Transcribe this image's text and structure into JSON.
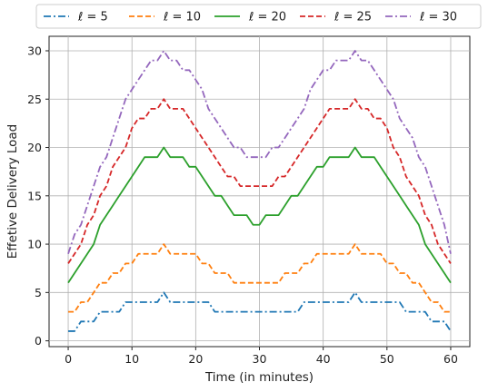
{
  "chart_data": {
    "type": "line",
    "xlabel": "Time (in minutes)",
    "ylabel": "Effetive Delivery Load",
    "xlim": [
      -3,
      63
    ],
    "ylim": [
      -0.6,
      31.5
    ],
    "xticks": [
      0,
      10,
      20,
      30,
      40,
      50,
      60
    ],
    "yticks": [
      0,
      5,
      10,
      15,
      20,
      25,
      30
    ],
    "grid": true,
    "legend_placement": "top-center, above plot, 5 columns",
    "x": [
      0,
      1,
      2,
      3,
      4,
      5,
      6,
      7,
      8,
      9,
      10,
      11,
      12,
      13,
      14,
      15,
      16,
      17,
      18,
      19,
      20,
      21,
      22,
      23,
      24,
      25,
      26,
      27,
      28,
      29,
      30,
      31,
      32,
      33,
      34,
      35,
      36,
      37,
      38,
      39,
      40,
      41,
      42,
      43,
      44,
      45,
      46,
      47,
      48,
      49,
      50,
      51,
      52,
      53,
      54,
      55,
      56,
      57,
      58,
      59,
      60
    ],
    "series": [
      {
        "name": "ℓ = 5",
        "color": "#1f77b4",
        "dash": "dashdot",
        "values": [
          1,
          1,
          2,
          2,
          2,
          3,
          3,
          3,
          3,
          4,
          4,
          4,
          4,
          4,
          4,
          5,
          4,
          4,
          4,
          4,
          4,
          4,
          4,
          3,
          3,
          3,
          3,
          3,
          3,
          3,
          3,
          3,
          3,
          3,
          3,
          3,
          3,
          4,
          4,
          4,
          4,
          4,
          4,
          4,
          4,
          5,
          4,
          4,
          4,
          4,
          4,
          4,
          4,
          3,
          3,
          3,
          3,
          2,
          2,
          2,
          1
        ]
      },
      {
        "name": "ℓ = 10",
        "color": "#ff7f0e",
        "dash": "dashed",
        "values": [
          3,
          3,
          4,
          4,
          5,
          6,
          6,
          7,
          7,
          8,
          8,
          9,
          9,
          9,
          9,
          10,
          9,
          9,
          9,
          9,
          9,
          8,
          8,
          7,
          7,
          7,
          6,
          6,
          6,
          6,
          6,
          6,
          6,
          6,
          7,
          7,
          7,
          8,
          8,
          9,
          9,
          9,
          9,
          9,
          9,
          10,
          9,
          9,
          9,
          9,
          8,
          8,
          7,
          7,
          6,
          6,
          5,
          4,
          4,
          3,
          3
        ]
      },
      {
        "name": "ℓ = 20",
        "color": "#2ca02c",
        "dash": "solid",
        "values": [
          6,
          7,
          8,
          9,
          10,
          12,
          13,
          14,
          15,
          16,
          17,
          18,
          19,
          19,
          19,
          20,
          19,
          19,
          19,
          18,
          18,
          17,
          16,
          15,
          15,
          14,
          13,
          13,
          13,
          12,
          12,
          13,
          13,
          13,
          14,
          15,
          15,
          16,
          17,
          18,
          18,
          19,
          19,
          19,
          19,
          20,
          19,
          19,
          19,
          18,
          17,
          16,
          15,
          14,
          13,
          12,
          10,
          9,
          8,
          7,
          6
        ]
      },
      {
        "name": "ℓ = 25",
        "color": "#d62728",
        "dash": "dashed",
        "values": [
          8,
          9,
          10,
          12,
          13,
          15,
          16,
          18,
          19,
          20,
          22,
          23,
          23,
          24,
          24,
          25,
          24,
          24,
          24,
          23,
          22,
          21,
          20,
          19,
          18,
          17,
          17,
          16,
          16,
          16,
          16,
          16,
          16,
          17,
          17,
          18,
          19,
          20,
          21,
          22,
          23,
          24,
          24,
          24,
          24,
          25,
          24,
          24,
          23,
          23,
          22,
          20,
          19,
          17,
          16,
          15,
          13,
          12,
          10,
          9,
          8
        ]
      },
      {
        "name": "ℓ = 30",
        "color": "#9467bd",
        "dash": "dashdot",
        "values": [
          9,
          11,
          12,
          14,
          16,
          18,
          19,
          21,
          23,
          25,
          26,
          27,
          28,
          29,
          29,
          30,
          29,
          29,
          28,
          28,
          27,
          26,
          24,
          23,
          22,
          21,
          20,
          20,
          19,
          19,
          19,
          19,
          20,
          20,
          21,
          22,
          23,
          24,
          26,
          27,
          28,
          28,
          29,
          29,
          29,
          30,
          29,
          29,
          28,
          27,
          26,
          25,
          23,
          22,
          21,
          19,
          18,
          16,
          14,
          12,
          9
        ]
      }
    ]
  }
}
